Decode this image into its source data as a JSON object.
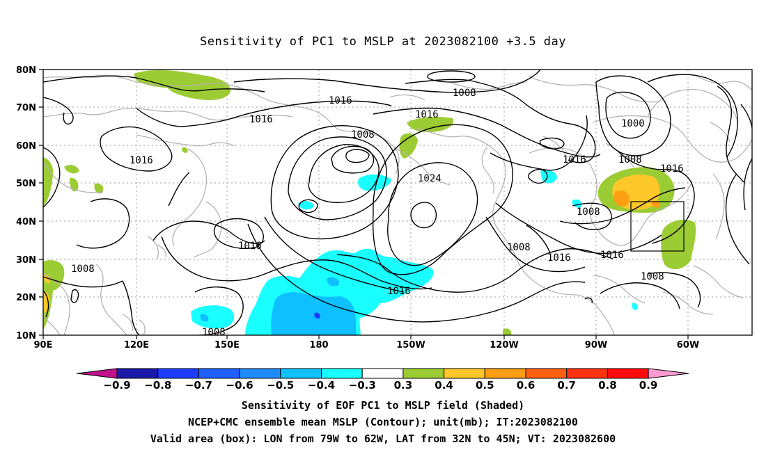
{
  "title": "Sensitivity of PC1 to MSLP at 2023082100 +3.5 day",
  "captions": {
    "line1": "Sensitivity of EOF PC1 to MSLP field (Shaded)",
    "line2": "NCEP+CMC ensemble mean MSLP (Contour); unit(mb); IT:2023082100",
    "line3": "Valid area (box): LON from 79W to 62W, LAT from 32N to 45N; VT: 2023082600"
  },
  "axes": {
    "lat_ticks": [
      "80N",
      "70N",
      "60N",
      "50N",
      "40N",
      "30N",
      "20N",
      "10N"
    ],
    "lon_ticks": [
      "90E",
      "120E",
      "150E",
      "180",
      "150W",
      "120W",
      "90W",
      "60W"
    ]
  },
  "colorbar": {
    "labels": [
      "-0.9",
      "-0.8",
      "-0.7",
      "-0.6",
      "-0.5",
      "-0.4",
      "-0.3",
      "0.3",
      "0.4",
      "0.5",
      "0.6",
      "0.7",
      "0.8",
      "0.9"
    ],
    "colors": [
      "#c0108c",
      "#1a1aa8",
      "#1e3cff",
      "#2060ff",
      "#1e8cff",
      "#0ec0ff",
      "#19ffff",
      "#ffffff",
      "#9ccc34",
      "#ffc82a",
      "#ff9e12",
      "#ff6010",
      "#ff3210",
      "#ff0a0a",
      "#ff9ad2"
    ]
  },
  "contours": {
    "labels": [
      "1008",
      "1016",
      "1016",
      "1016",
      "1008",
      "1016",
      "1000",
      "1024",
      "1016",
      "1008",
      "1016",
      "1016",
      "1008",
      "1016",
      "1008",
      "1016",
      "1016",
      "1008",
      "1008",
      "1008"
    ]
  },
  "valid_box": {
    "lon_from": "79W",
    "lon_to": "62W",
    "lat_from": "32N",
    "lat_to": "45N"
  }
}
